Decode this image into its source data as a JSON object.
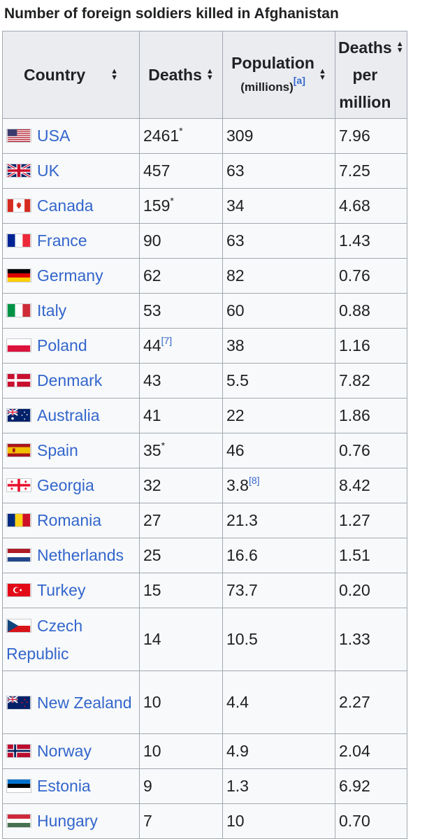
{
  "caption": "Number of foreign soldiers killed in Afghanistan",
  "headers": {
    "country": "Country",
    "deaths": "Deaths",
    "population": "Population",
    "population_unit": "(millions)",
    "population_ref": "[a]",
    "dpm_1": "Deaths",
    "dpm_2": "per",
    "dpm_3": "million"
  },
  "rows": [
    {
      "country": "USA",
      "deaths": "2461",
      "deaths_sup": "*",
      "population": "309",
      "pop_sup": "",
      "dpm": "7.96",
      "flag": "us-flag-icon"
    },
    {
      "country": "UK",
      "deaths": "457",
      "deaths_sup": "",
      "population": "63",
      "pop_sup": "",
      "dpm": "7.25",
      "flag": "uk-flag-icon"
    },
    {
      "country": "Canada",
      "deaths": "159",
      "deaths_sup": "*",
      "population": "34",
      "pop_sup": "",
      "dpm": "4.68",
      "flag": "canada-flag-icon"
    },
    {
      "country": "France",
      "deaths": "90",
      "deaths_sup": "",
      "population": "63",
      "pop_sup": "",
      "dpm": "1.43",
      "flag": "france-flag-icon"
    },
    {
      "country": "Germany",
      "deaths": "62",
      "deaths_sup": "",
      "population": "82",
      "pop_sup": "",
      "dpm": "0.76",
      "flag": "germany-flag-icon"
    },
    {
      "country": "Italy",
      "deaths": "53",
      "deaths_sup": "",
      "population": "60",
      "pop_sup": "",
      "dpm": "0.88",
      "flag": "italy-flag-icon"
    },
    {
      "country": "Poland",
      "deaths": "44",
      "deaths_sup": "[7]",
      "population": "38",
      "pop_sup": "",
      "dpm": "1.16",
      "flag": "poland-flag-icon"
    },
    {
      "country": "Denmark",
      "deaths": "43",
      "deaths_sup": "",
      "population": "5.5",
      "pop_sup": "",
      "dpm": "7.82",
      "flag": "denmark-flag-icon"
    },
    {
      "country": "Australia",
      "deaths": "41",
      "deaths_sup": "",
      "population": "22",
      "pop_sup": "",
      "dpm": "1.86",
      "flag": "australia-flag-icon"
    },
    {
      "country": "Spain",
      "deaths": "35",
      "deaths_sup": "*",
      "population": "46",
      "pop_sup": "",
      "dpm": "0.76",
      "flag": "spain-flag-icon"
    },
    {
      "country": "Georgia",
      "deaths": "32",
      "deaths_sup": "",
      "population": "3.8",
      "pop_sup": "[8]",
      "dpm": "8.42",
      "flag": "georgia-flag-icon"
    },
    {
      "country": "Romania",
      "deaths": "27",
      "deaths_sup": "",
      "population": "21.3",
      "pop_sup": "",
      "dpm": "1.27",
      "flag": "romania-flag-icon"
    },
    {
      "country": "Netherlands",
      "deaths": "25",
      "deaths_sup": "",
      "population": "16.6",
      "pop_sup": "",
      "dpm": "1.51",
      "flag": "netherlands-flag-icon"
    },
    {
      "country": "Turkey",
      "deaths": "15",
      "deaths_sup": "",
      "population": "73.7",
      "pop_sup": "",
      "dpm": "0.20",
      "flag": "turkey-flag-icon"
    },
    {
      "country": "Czech Republic",
      "deaths": "14",
      "deaths_sup": "",
      "population": "10.5",
      "pop_sup": "",
      "dpm": "1.33",
      "flag": "czech-flag-icon"
    },
    {
      "country": "New Zealand",
      "deaths": "10",
      "deaths_sup": "",
      "population": "4.4",
      "pop_sup": "",
      "dpm": "2.27",
      "flag": "new-zealand-flag-icon"
    },
    {
      "country": "Norway",
      "deaths": "10",
      "deaths_sup": "",
      "population": "4.9",
      "pop_sup": "",
      "dpm": "2.04",
      "flag": "norway-flag-icon"
    },
    {
      "country": "Estonia",
      "deaths": "9",
      "deaths_sup": "",
      "population": "1.3",
      "pop_sup": "",
      "dpm": "6.92",
      "flag": "estonia-flag-icon"
    },
    {
      "country": "Hungary",
      "deaths": "7",
      "deaths_sup": "",
      "population": "10",
      "pop_sup": "",
      "dpm": "0.70",
      "flag": "hungary-flag-icon"
    }
  ],
  "colors": {
    "link": "#3366cc",
    "header_bg": "#eaecf0",
    "cell_bg": "#f8f9fa",
    "border": "#a2a9b1"
  }
}
